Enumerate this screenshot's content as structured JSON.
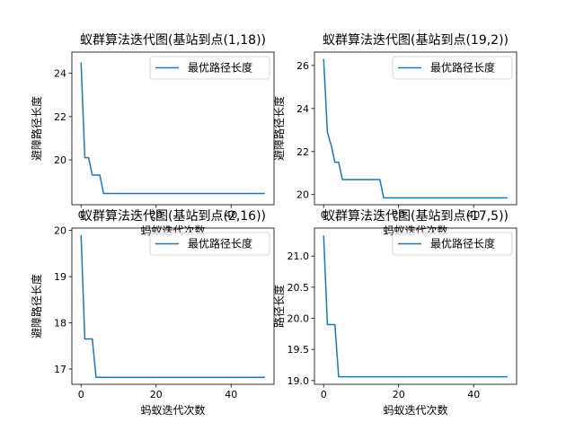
{
  "chart_data": [
    {
      "type": "line",
      "title": "蚁群算法迭代图(基站到点(1,18))",
      "xlabel": "蚂蚁迭代次数",
      "ylabel": "避障路径长度",
      "xlim": [
        -2.45,
        51.45
      ],
      "ylim": [
        17.93,
        24.98
      ],
      "xticks": [
        0,
        20,
        40
      ],
      "yticks": [
        20,
        22,
        24
      ],
      "legend": "top-right",
      "series": [
        {
          "name": "最优路径长度",
          "color": "#1f77b4",
          "x": [
            0,
            1,
            2,
            3,
            4,
            5,
            6,
            7,
            8,
            9,
            10,
            11,
            12,
            13,
            14,
            15,
            16,
            17,
            18,
            19,
            20,
            21,
            22,
            23,
            24,
            25,
            26,
            27,
            28,
            29,
            30,
            31,
            32,
            33,
            34,
            35,
            36,
            37,
            38,
            39,
            40,
            41,
            42,
            43,
            44,
            45,
            46,
            47,
            48,
            49
          ],
          "y": [
            24.5,
            20.1,
            20.1,
            19.3,
            19.3,
            19.3,
            18.45,
            18.45,
            18.45,
            18.45,
            18.45,
            18.45,
            18.45,
            18.45,
            18.45,
            18.45,
            18.45,
            18.45,
            18.45,
            18.45,
            18.45,
            18.45,
            18.45,
            18.45,
            18.45,
            18.45,
            18.45,
            18.45,
            18.45,
            18.45,
            18.45,
            18.45,
            18.45,
            18.45,
            18.45,
            18.45,
            18.45,
            18.45,
            18.45,
            18.45,
            18.45,
            18.45,
            18.45,
            18.45,
            18.45,
            18.45,
            18.45,
            18.45,
            18.45,
            18.45
          ]
        }
      ]
    },
    {
      "type": "line",
      "title": "蚁群算法迭代图(基站到点(19,2))",
      "xlabel": "蚂蚁迭代次数",
      "ylabel": "避障路径长度",
      "xlim": [
        -2.45,
        51.45
      ],
      "ylim": [
        19.53,
        26.62
      ],
      "xticks": [
        0,
        20,
        40
      ],
      "yticks": [
        20,
        22,
        24,
        26
      ],
      "legend": "top-right",
      "series": [
        {
          "name": "最优路径长度",
          "color": "#1f77b4",
          "x": [
            0,
            1,
            2,
            3,
            4,
            5,
            6,
            7,
            8,
            9,
            10,
            11,
            12,
            13,
            14,
            15,
            16,
            17,
            18,
            19,
            20,
            21,
            22,
            23,
            24,
            25,
            26,
            27,
            28,
            29,
            30,
            31,
            32,
            33,
            34,
            35,
            36,
            37,
            38,
            39,
            40,
            41,
            42,
            43,
            44,
            45,
            46,
            47,
            48,
            49
          ],
          "y": [
            26.3,
            22.9,
            22.3,
            21.5,
            21.5,
            20.7,
            20.7,
            20.7,
            20.7,
            20.7,
            20.7,
            20.7,
            20.7,
            20.7,
            20.7,
            20.7,
            19.85,
            19.85,
            19.85,
            19.85,
            19.85,
            19.85,
            19.85,
            19.85,
            19.85,
            19.85,
            19.85,
            19.85,
            19.85,
            19.85,
            19.85,
            19.85,
            19.85,
            19.85,
            19.85,
            19.85,
            19.85,
            19.85,
            19.85,
            19.85,
            19.85,
            19.85,
            19.85,
            19.85,
            19.85,
            19.85,
            19.85,
            19.85,
            19.85,
            19.85
          ]
        }
      ]
    },
    {
      "type": "line",
      "title": "蚁群算法迭代图(基站到点(2,16))",
      "xlabel": "蚂蚁迭代次数",
      "ylabel": "避障路径长度",
      "xlim": [
        -2.45,
        51.45
      ],
      "ylim": [
        16.67,
        20.05
      ],
      "xticks": [
        0,
        20,
        40
      ],
      "yticks": [
        17,
        18,
        19,
        20
      ],
      "legend": "top-right",
      "series": [
        {
          "name": "最优路径长度",
          "color": "#1f77b4",
          "x": [
            0,
            1,
            2,
            3,
            4,
            5,
            6,
            7,
            8,
            9,
            10,
            11,
            12,
            13,
            14,
            15,
            16,
            17,
            18,
            19,
            20,
            21,
            22,
            23,
            24,
            25,
            26,
            27,
            28,
            29,
            30,
            31,
            32,
            33,
            34,
            35,
            36,
            37,
            38,
            39,
            40,
            41,
            42,
            43,
            44,
            45,
            46,
            47,
            48,
            49
          ],
          "y": [
            19.9,
            17.65,
            17.65,
            17.65,
            16.82,
            16.82,
            16.82,
            16.82,
            16.82,
            16.82,
            16.82,
            16.82,
            16.82,
            16.82,
            16.82,
            16.82,
            16.82,
            16.82,
            16.82,
            16.82,
            16.82,
            16.82,
            16.82,
            16.82,
            16.82,
            16.82,
            16.82,
            16.82,
            16.82,
            16.82,
            16.82,
            16.82,
            16.82,
            16.82,
            16.82,
            16.82,
            16.82,
            16.82,
            16.82,
            16.82,
            16.82,
            16.82,
            16.82,
            16.82,
            16.82,
            16.82,
            16.82,
            16.82,
            16.82,
            16.82
          ]
        }
      ]
    },
    {
      "type": "line",
      "title": "蚁群算法迭代图(基站到点(17,5))",
      "xlabel": "蚂蚁迭代次数",
      "ylabel": "路径长度",
      "xlim": [
        -2.45,
        51.45
      ],
      "ylim": [
        18.94,
        21.45
      ],
      "xticks": [
        0,
        20,
        40
      ],
      "yticks": [
        19.0,
        19.5,
        20.0,
        20.5,
        21.0
      ],
      "ytick_labels": [
        "19.0",
        "19.5",
        "20.0",
        "20.5",
        "21.0"
      ],
      "legend": "top-right",
      "series": [
        {
          "name": "最优路径长度",
          "color": "#1f77b4",
          "x": [
            0,
            1,
            2,
            3,
            4,
            5,
            6,
            7,
            8,
            9,
            10,
            11,
            12,
            13,
            14,
            15,
            16,
            17,
            18,
            19,
            20,
            21,
            22,
            23,
            24,
            25,
            26,
            27,
            28,
            29,
            30,
            31,
            32,
            33,
            34,
            35,
            36,
            37,
            38,
            39,
            40,
            41,
            42,
            43,
            44,
            45,
            46,
            47,
            48,
            49
          ],
          "y": [
            21.33,
            19.9,
            19.9,
            19.9,
            19.06,
            19.06,
            19.06,
            19.06,
            19.06,
            19.06,
            19.06,
            19.06,
            19.06,
            19.06,
            19.06,
            19.06,
            19.06,
            19.06,
            19.06,
            19.06,
            19.06,
            19.06,
            19.06,
            19.06,
            19.06,
            19.06,
            19.06,
            19.06,
            19.06,
            19.06,
            19.06,
            19.06,
            19.06,
            19.06,
            19.06,
            19.06,
            19.06,
            19.06,
            19.06,
            19.06,
            19.06,
            19.06,
            19.06,
            19.06,
            19.06,
            19.06,
            19.06,
            19.06,
            19.06,
            19.06
          ]
        }
      ]
    }
  ]
}
